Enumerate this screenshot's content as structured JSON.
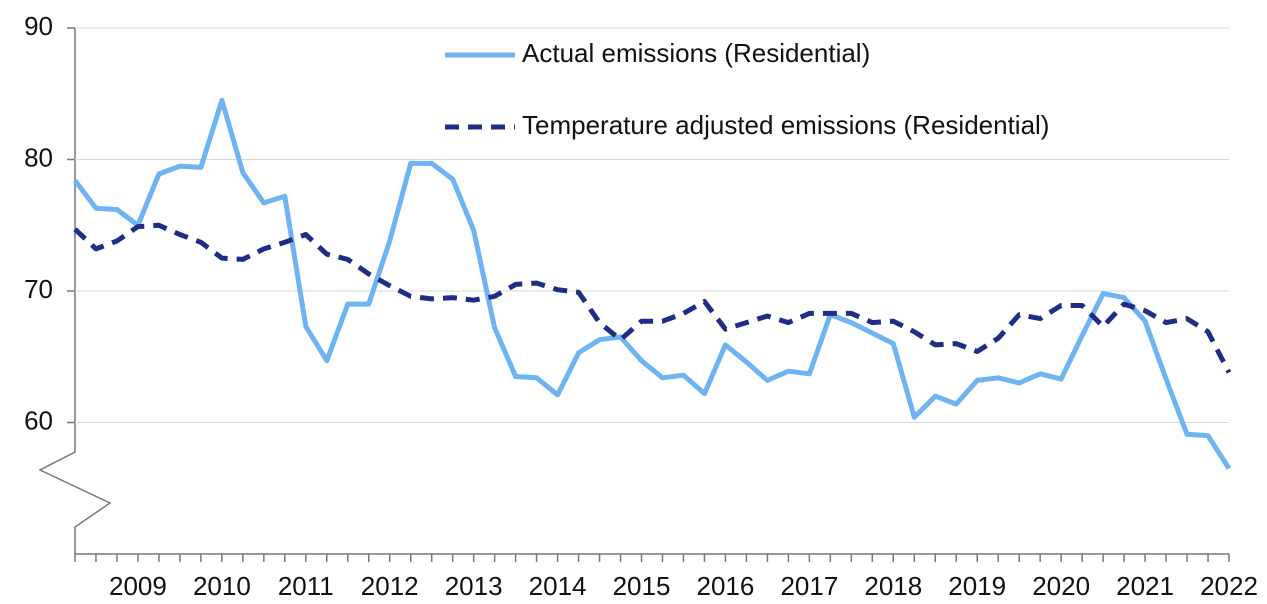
{
  "chart_data": {
    "type": "line",
    "categories": [
      null,
      null,
      null,
      "2009",
      null,
      null,
      null,
      "2010",
      null,
      null,
      null,
      "2011",
      null,
      null,
      null,
      "2012",
      null,
      null,
      null,
      "2013",
      null,
      null,
      null,
      "2014",
      null,
      null,
      null,
      "2015",
      null,
      null,
      null,
      "2016",
      null,
      null,
      null,
      "2017",
      null,
      null,
      null,
      "2018",
      null,
      null,
      null,
      "2019",
      null,
      null,
      null,
      "2020",
      null,
      null,
      null,
      "2021",
      null,
      null,
      null,
      "2022"
    ],
    "series": [
      {
        "name": "Actual emissions (Residential)",
        "color": "#6fb4f2",
        "dash": false,
        "values": [
          78.4,
          76.3,
          76.2,
          75.0,
          78.9,
          79.5,
          79.4,
          84.5,
          79.0,
          76.7,
          77.2,
          67.3,
          64.7,
          69.0,
          69.0,
          73.8,
          79.7,
          79.7,
          78.5,
          74.6,
          67.2,
          63.5,
          63.4,
          62.1,
          65.3,
          66.3,
          66.5,
          64.7,
          63.4,
          63.6,
          62.2,
          65.9,
          64.6,
          63.2,
          63.9,
          63.7,
          68.2,
          67.6,
          66.8,
          66.0,
          60.4,
          62.0,
          61.4,
          63.2,
          63.4,
          63.0,
          63.7,
          63.3,
          66.6,
          69.8,
          69.5,
          67.7,
          63.3,
          59.1,
          59.0,
          56.5
        ]
      },
      {
        "name": "Temperature adjusted emissions (Residential)",
        "color": "#1f2d86",
        "dash": true,
        "values": [
          74.7,
          73.2,
          73.8,
          74.9,
          75.0,
          74.3,
          73.7,
          72.5,
          72.4,
          73.2,
          73.7,
          74.3,
          72.8,
          72.4,
          71.3,
          70.4,
          69.6,
          69.4,
          69.5,
          69.3,
          69.6,
          70.5,
          70.6,
          70.1,
          69.9,
          67.6,
          66.3,
          67.7,
          67.7,
          68.3,
          69.2,
          67.1,
          67.6,
          68.1,
          67.6,
          68.3,
          68.3,
          68.3,
          67.6,
          67.7,
          66.9,
          65.9,
          66.0,
          65.4,
          66.4,
          68.2,
          67.9,
          68.9,
          68.9,
          67.3,
          69.0,
          68.5,
          67.6,
          67.9,
          66.9,
          63.8
        ]
      }
    ],
    "ylim": [
      50,
      90
    ],
    "yticks": [
      60,
      70,
      80,
      90
    ],
    "grid": true
  }
}
